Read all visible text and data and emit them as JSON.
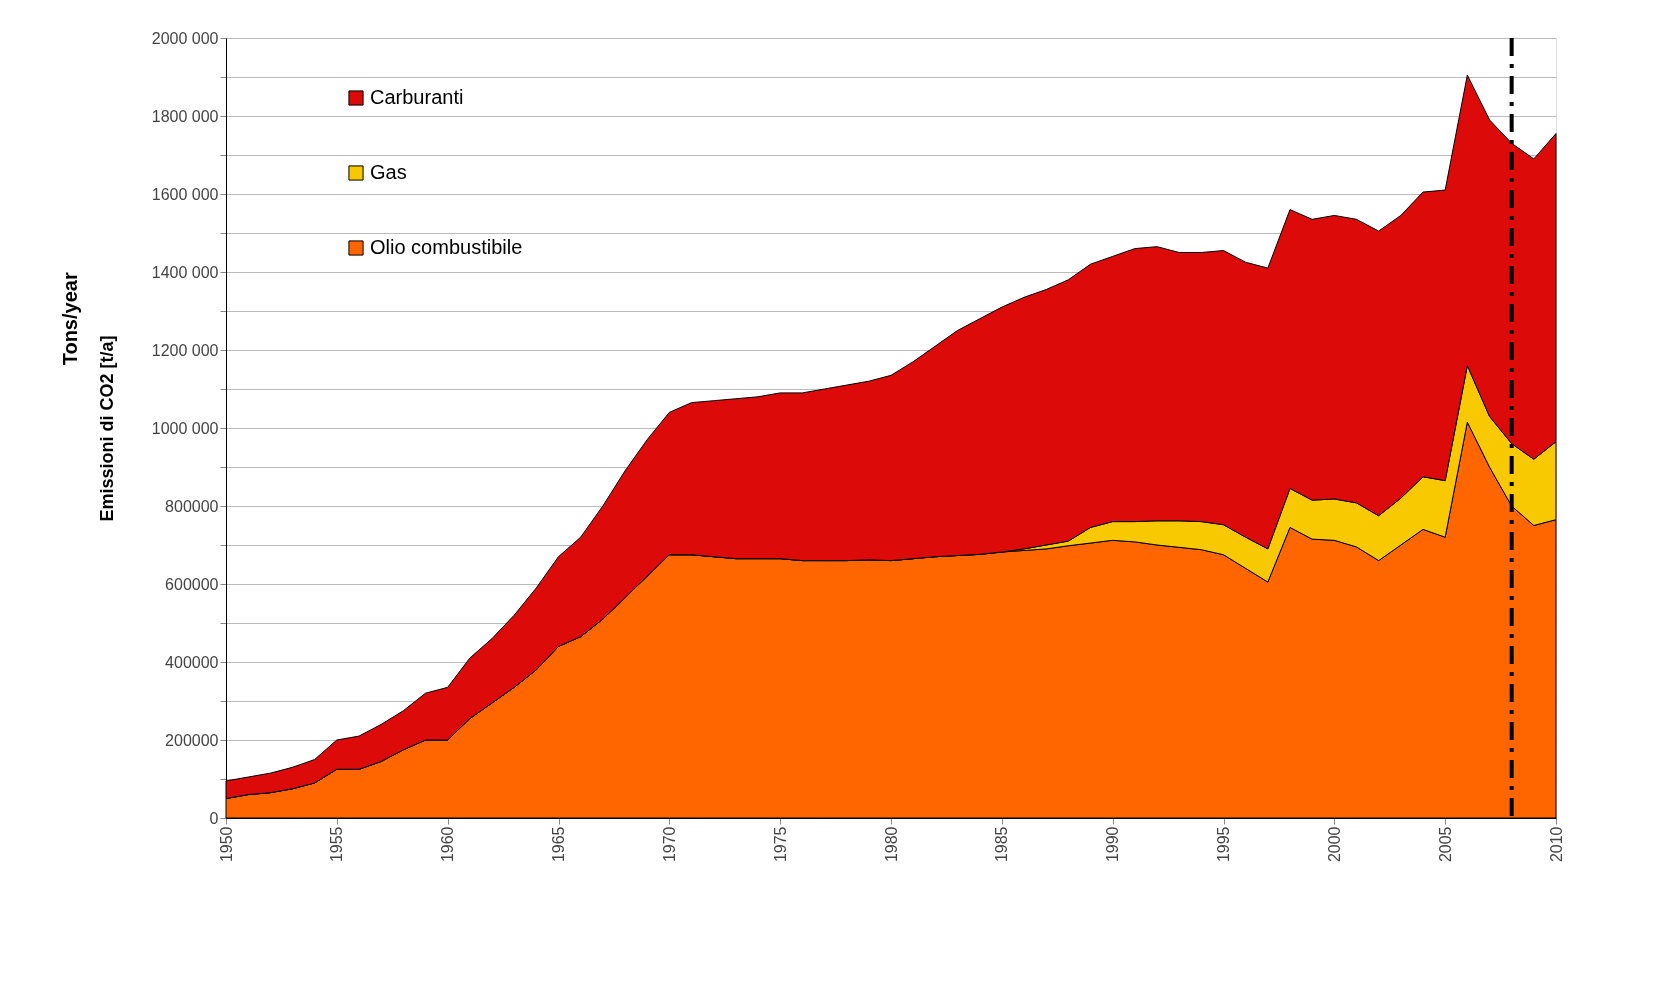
{
  "chart_data": {
    "type": "area",
    "stacked": true,
    "ylabel": "Emissioni  di CO2  [t/a]",
    "annotations": [
      "Tons/year"
    ],
    "x": [
      1950,
      1951,
      1952,
      1953,
      1954,
      1955,
      1956,
      1957,
      1958,
      1959,
      1960,
      1961,
      1962,
      1963,
      1964,
      1965,
      1966,
      1967,
      1968,
      1969,
      1970,
      1971,
      1972,
      1973,
      1974,
      1975,
      1976,
      1977,
      1978,
      1979,
      1980,
      1981,
      1982,
      1983,
      1984,
      1985,
      1986,
      1987,
      1988,
      1989,
      1990,
      1991,
      1992,
      1993,
      1994,
      1995,
      1996,
      1997,
      1998,
      1999,
      2000,
      2001,
      2002,
      2003,
      2004,
      2005,
      2006,
      2007,
      2008,
      2009,
      2010
    ],
    "series": [
      {
        "name": "Olio combustibile",
        "color": "#ff6600",
        "values": [
          50000,
          60000,
          65000,
          75000,
          90000,
          125000,
          125000,
          145000,
          175000,
          200000,
          200000,
          255000,
          295000,
          335000,
          380000,
          440000,
          465000,
          510000,
          565000,
          620000,
          675000,
          675000,
          670000,
          665000,
          665000,
          665000,
          660000,
          660000,
          660000,
          662000,
          660000,
          665000,
          670000,
          673000,
          676000,
          682000,
          686000,
          690000,
          698000,
          705000,
          712000,
          708000,
          700000,
          694000,
          688000,
          675000,
          640000,
          605000,
          745000,
          715000,
          712000,
          695000,
          660000,
          700000,
          740000,
          720000,
          1015000,
          900000,
          800000,
          750000,
          765000
        ]
      },
      {
        "name": "Gas",
        "color": "#f8c800",
        "values": [
          0,
          0,
          0,
          0,
          0,
          0,
          0,
          0,
          0,
          0,
          0,
          0,
          0,
          0,
          0,
          0,
          0,
          0,
          0,
          0,
          0,
          0,
          0,
          0,
          0,
          0,
          0,
          0,
          0,
          0,
          0,
          0,
          0,
          0,
          0,
          0,
          4000,
          10000,
          12000,
          40000,
          48000,
          52000,
          62000,
          68000,
          72000,
          77000,
          80000,
          85000,
          100000,
          100000,
          106000,
          113000,
          115000,
          120000,
          135000,
          145000,
          145000,
          130000,
          160000,
          170000,
          200000
        ]
      },
      {
        "name": "Carburanti",
        "color": "#dd0a0a",
        "values": [
          45000,
          45000,
          50000,
          55000,
          60000,
          75000,
          85000,
          95000,
          100000,
          120000,
          135000,
          155000,
          165000,
          185000,
          210000,
          230000,
          255000,
          290000,
          325000,
          350000,
          365000,
          390000,
          400000,
          410000,
          415000,
          425000,
          430000,
          440000,
          450000,
          458000,
          475000,
          505000,
          540000,
          577000,
          604000,
          628000,
          645000,
          655000,
          670000,
          675000,
          680000,
          700000,
          703000,
          688000,
          690000,
          703000,
          705000,
          720000,
          715000,
          720000,
          727000,
          727000,
          730000,
          725000,
          730000,
          745000,
          745000,
          760000,
          770000,
          770000,
          790000
        ]
      }
    ],
    "xlim": [
      1950,
      2010
    ],
    "xticks": [
      1950,
      1955,
      1960,
      1965,
      1970,
      1975,
      1980,
      1985,
      1990,
      1995,
      2000,
      2005,
      2010
    ],
    "ylim": [
      0,
      2000000
    ],
    "yticks": [
      0,
      {
        "value": 100000,
        "label": null
      },
      200000,
      {
        "value": 300000,
        "label": null
      },
      400000,
      {
        "value": 500000,
        "label": null
      },
      600000,
      {
        "value": 700000,
        "label": null
      },
      800000,
      {
        "value": 900000,
        "label": null
      },
      {
        "value": 1000000,
        "label": "1000 000"
      },
      {
        "value": 1100000,
        "label": null
      },
      {
        "value": 1200000,
        "label": "1200 000"
      },
      {
        "value": 1300000,
        "label": null
      },
      {
        "value": 1400000,
        "label": "1400 000"
      },
      {
        "value": 1500000,
        "label": null
      },
      {
        "value": 1600000,
        "label": "1600 000"
      },
      {
        "value": 1700000,
        "label": null
      },
      {
        "value": 1800000,
        "label": "1800 000"
      },
      {
        "value": 1900000,
        "label": null
      },
      {
        "value": 2000000,
        "label": "2000 000"
      }
    ],
    "ref_lines": [
      {
        "axis": "x",
        "value": 2008,
        "color": "#000000",
        "line_style": "dashed"
      }
    ],
    "grid": "y",
    "legend": "top left"
  }
}
